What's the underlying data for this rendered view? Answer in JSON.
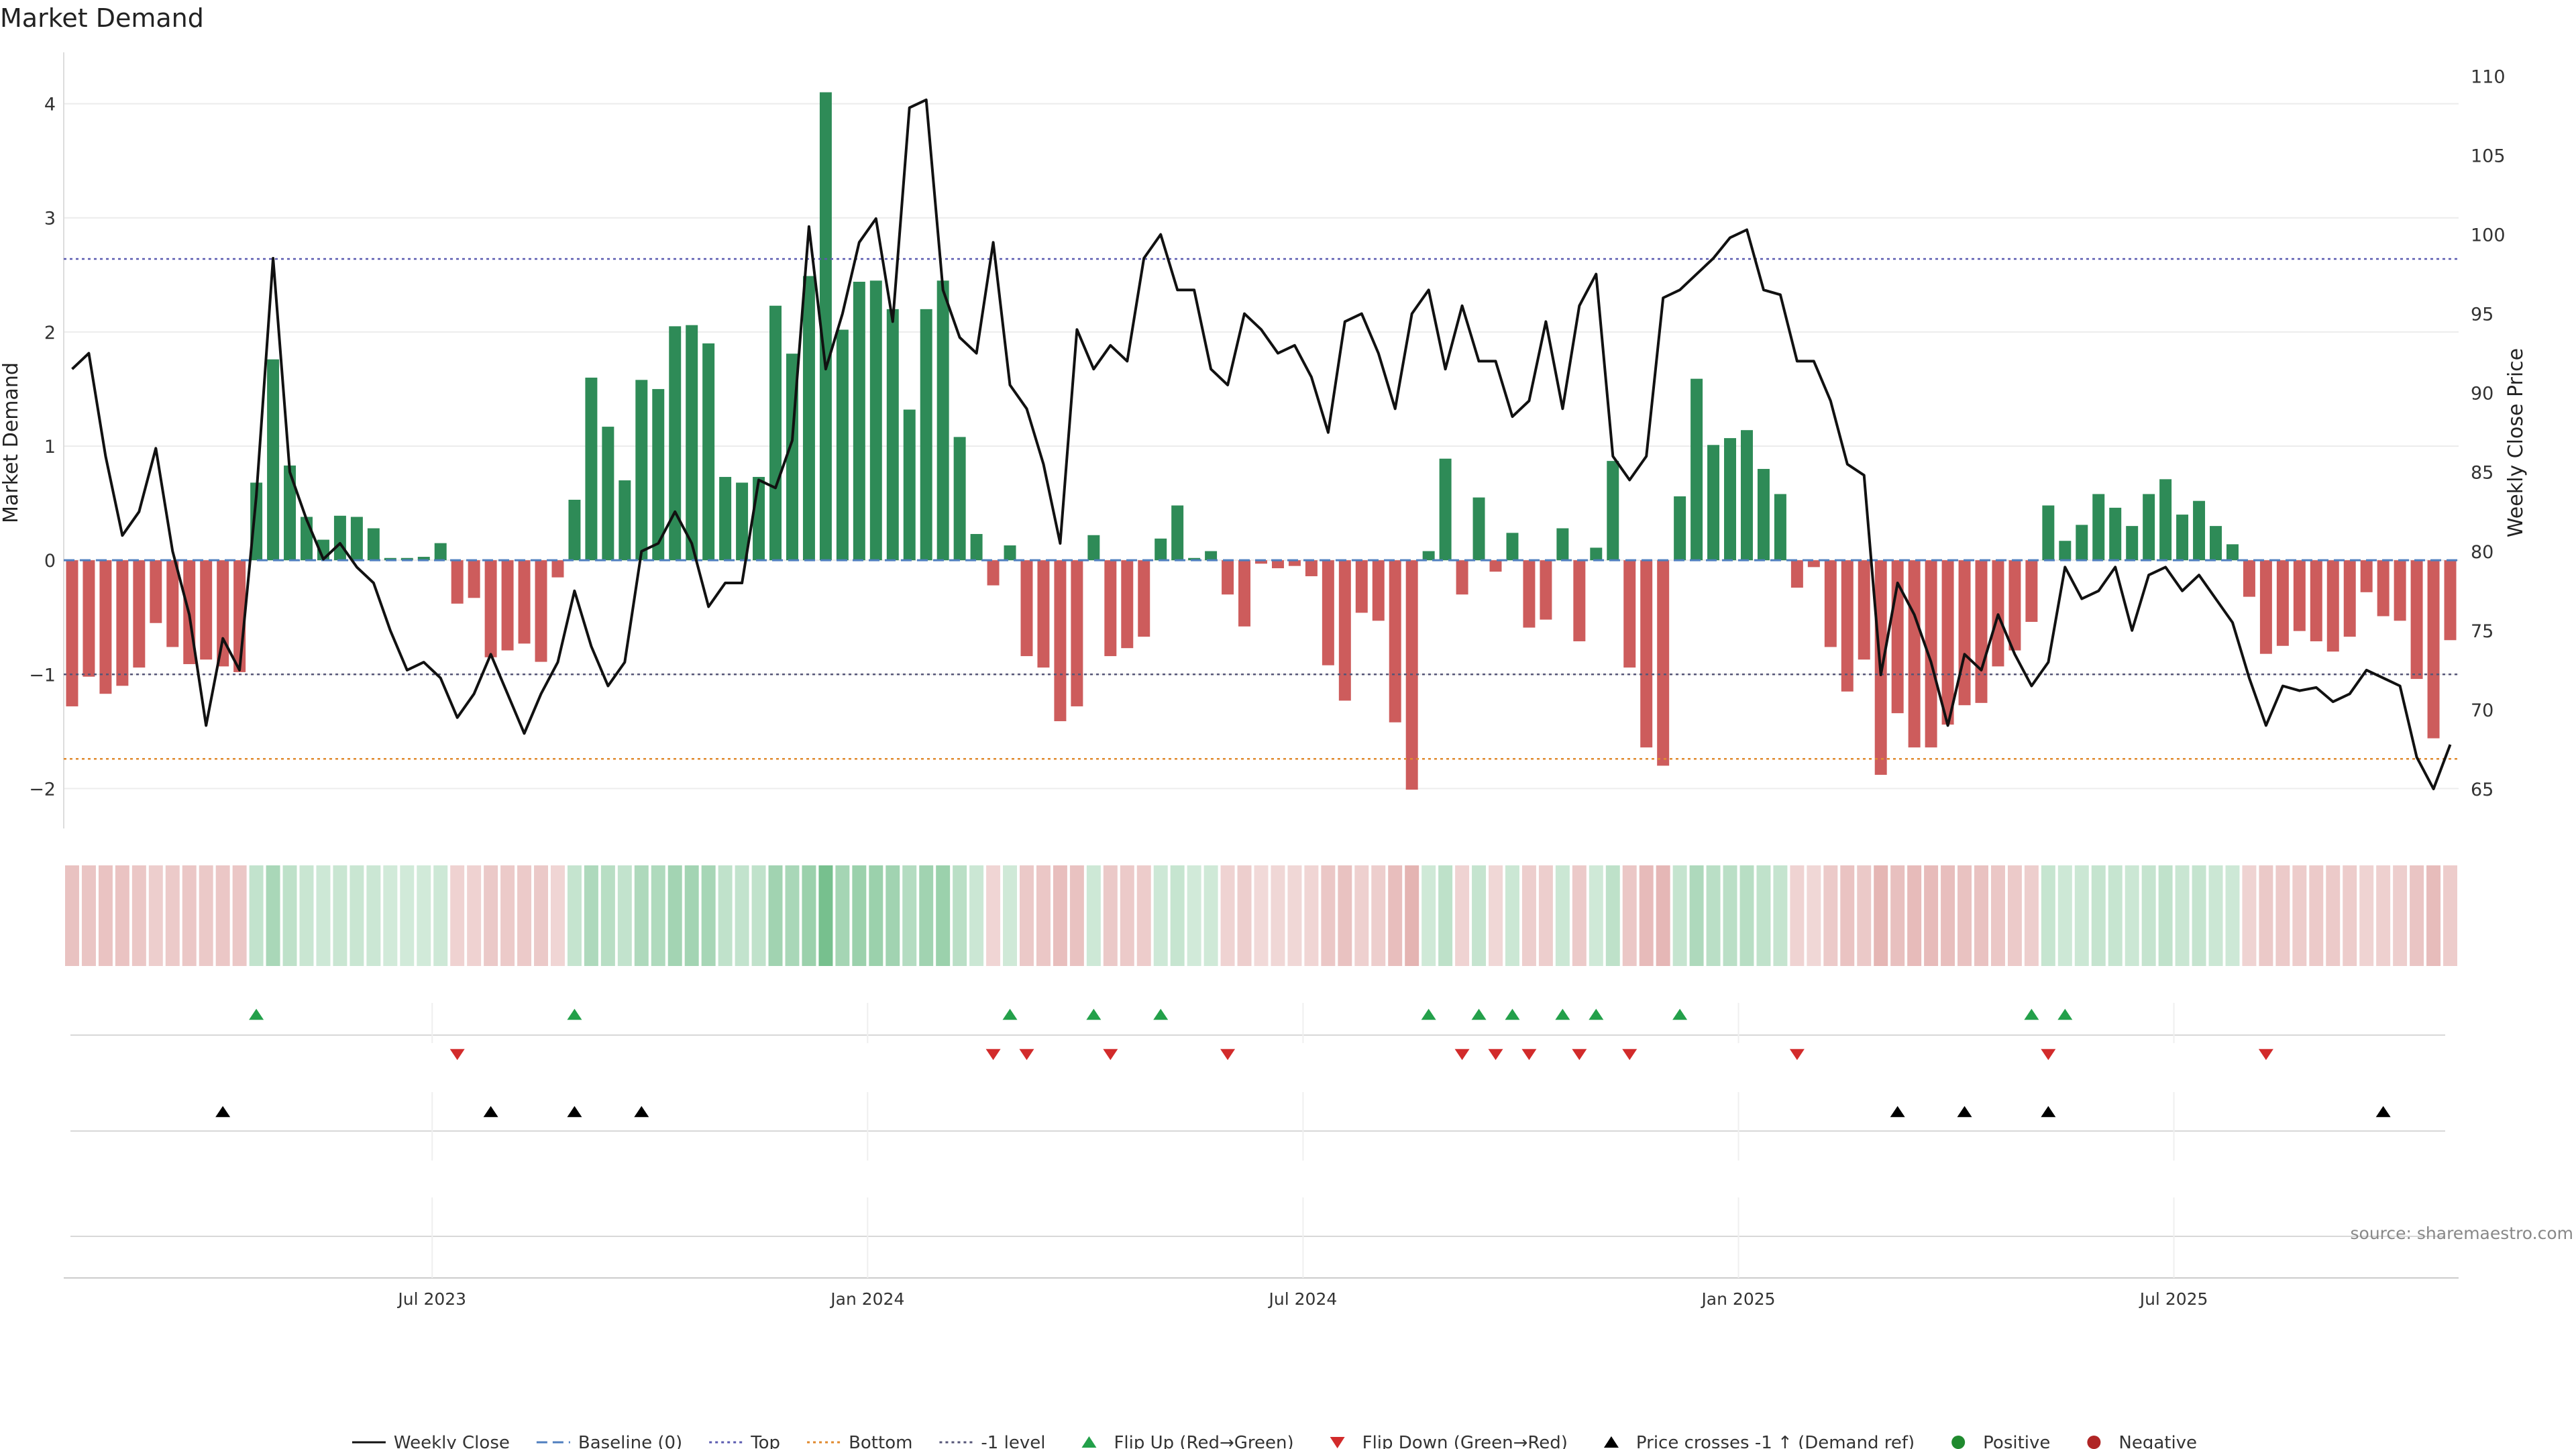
{
  "chart_data": {
    "type": "bar",
    "title": "Market Demand",
    "ylabel": "Market Demand",
    "y2label": "Weekly Close Price",
    "ylim": [
      -2.35,
      4.45
    ],
    "y2lim": [
      62.5,
      111.5
    ],
    "yticks": [
      -2,
      -1,
      0,
      1,
      2,
      3,
      4
    ],
    "y2ticks": [
      65,
      70,
      75,
      80,
      85,
      90,
      95,
      100,
      105,
      110
    ],
    "xticks": [
      {
        "label": "Jul 2023",
        "index": 22
      },
      {
        "label": "Jan 2024",
        "index": 48
      },
      {
        "label": "Jul 2024",
        "index": 74
      },
      {
        "label": "Jan 2025",
        "index": 100
      },
      {
        "label": "Jul 2025",
        "index": 126
      }
    ],
    "reference_lines": {
      "top": 2.64,
      "bottom": -1.74,
      "minus_one": -1.0,
      "baseline": 0
    },
    "demand": [
      -1.28,
      -1.02,
      -1.17,
      -1.1,
      -0.94,
      -0.55,
      -0.76,
      -0.91,
      -0.87,
      -0.93,
      -0.98,
      0.68,
      1.76,
      0.83,
      0.38,
      0.18,
      0.39,
      0.38,
      0.28,
      0.02,
      0.02,
      0.03,
      0.15,
      -0.38,
      -0.33,
      -0.85,
      -0.79,
      -0.73,
      -0.89,
      -0.15,
      0.53,
      1.6,
      1.17,
      0.7,
      1.58,
      1.5,
      2.05,
      2.06,
      1.9,
      0.73,
      0.68,
      0.73,
      2.23,
      1.81,
      2.49,
      4.1,
      2.02,
      2.44,
      2.45,
      2.2,
      1.32,
      2.2,
      2.45,
      1.08,
      0.23,
      -0.22,
      0.13,
      -0.84,
      -0.94,
      -1.41,
      -1.28,
      0.22,
      -0.84,
      -0.77,
      -0.67,
      0.19,
      0.48,
      0.02,
      0.08,
      -0.3,
      -0.58,
      -0.03,
      -0.07,
      -0.05,
      -0.14,
      -0.92,
      -1.23,
      -0.46,
      -0.53,
      -1.42,
      -2.01,
      0.08,
      0.89,
      -0.3,
      0.55,
      -0.1,
      0.24,
      -0.59,
      -0.52,
      0.28,
      -0.71,
      0.11,
      0.87,
      -0.94,
      -1.64,
      -1.8,
      0.56,
      1.59,
      1.01,
      1.07,
      1.14,
      0.8,
      0.58,
      -0.24,
      -0.06,
      -0.76,
      -1.15,
      -0.87,
      -1.88,
      -1.34,
      -1.64,
      -1.64,
      -1.44,
      -1.27,
      -1.25,
      -0.93,
      -0.79,
      -0.54,
      0.48,
      0.17,
      0.31,
      0.58,
      0.46,
      0.3,
      0.58,
      0.71,
      0.4,
      0.52,
      0.3,
      0.14,
      -0.32,
      -0.82,
      -0.75,
      -0.62,
      -0.71,
      -0.8,
      -0.67,
      -0.28,
      -0.49,
      -0.53,
      -1.04,
      -1.56,
      -0.7
    ],
    "close": [
      91.5,
      92.5,
      86,
      81,
      82.5,
      86.5,
      80,
      76,
      69,
      74.5,
      72.5,
      83.5,
      98.5,
      85,
      82,
      79.5,
      80.5,
      79,
      78,
      75,
      72.5,
      73,
      72,
      69.5,
      71,
      73.5,
      71,
      68.5,
      71,
      73,
      77.5,
      74,
      71.5,
      73,
      80,
      80.5,
      82.5,
      80.5,
      76.5,
      78,
      78,
      84.5,
      84,
      87,
      100.5,
      91.5,
      95,
      99.5,
      101,
      94.5,
      108,
      108.5,
      96.5,
      93.5,
      92.5,
      99.5,
      90.5,
      89,
      85.5,
      80.5,
      94,
      91.5,
      93,
      92,
      98.5,
      100,
      96.5,
      96.5,
      91.5,
      90.5,
      95,
      94,
      92.5,
      93,
      91,
      87.5,
      94.5,
      95,
      92.5,
      89,
      95,
      96.5,
      91.5,
      95.5,
      92,
      92,
      88.5,
      89.5,
      94.5,
      89,
      95.5,
      97.5,
      86,
      84.5,
      86,
      96,
      96.5,
      97.5,
      98.5,
      99.8,
      100.3,
      96.5,
      96.2,
      92,
      92,
      89.5,
      85.5,
      84.8,
      72.2,
      78,
      76,
      73,
      69,
      73.5,
      72.5,
      76,
      73.5,
      71.5,
      73,
      79,
      77,
      77.5,
      79,
      75,
      78.5,
      79,
      77.5,
      78.5,
      77,
      75.5,
      72,
      69,
      71.5,
      71.2,
      71.4,
      70.5,
      71,
      72.5,
      72,
      71.5,
      67,
      65,
      67.8
    ],
    "flip_up_indices": [
      11,
      30,
      56,
      61,
      65,
      81,
      84,
      86,
      89,
      91,
      96,
      117,
      119
    ],
    "flip_down_indices": [
      23,
      55,
      57,
      62,
      69,
      83,
      85,
      87,
      90,
      93,
      103,
      118,
      131
    ],
    "price_cross_indices": [
      9,
      25,
      30,
      34,
      109,
      113,
      118,
      138
    ],
    "legend": [
      {
        "label": "Weekly Close",
        "kind": "line",
        "color": "#111111",
        "dash": ""
      },
      {
        "label": "Baseline (0)",
        "kind": "line",
        "color": "#4f7fbf",
        "dash": "16,8"
      },
      {
        "label": "Top",
        "kind": "line",
        "color": "#5b5bb0",
        "dash": "4,5"
      },
      {
        "label": "Bottom",
        "kind": "line",
        "color": "#e08a2e",
        "dash": "4,5"
      },
      {
        "label": "-1 level",
        "kind": "line",
        "color": "#555577",
        "dash": "4,5"
      },
      {
        "label": "Flip Up (Red→Green)",
        "kind": "tri-up",
        "color": "#23a04a"
      },
      {
        "label": "Flip Down (Green→Red)",
        "kind": "tri-down",
        "color": "#d22b2b"
      },
      {
        "label": "Price crosses -1 ↑ (Demand ref)",
        "kind": "tri-up",
        "color": "#000000"
      },
      {
        "label": "Positive",
        "kind": "dot",
        "color": "#1f8a2e"
      },
      {
        "label": "Negative",
        "kind": "dot",
        "color": "#b02525"
      }
    ],
    "source": "source: sharemaestro.com"
  },
  "colors": {
    "positive": "#2e8b57",
    "negative": "#cd5c5c",
    "line": "#111111",
    "grid": "#ececec"
  }
}
